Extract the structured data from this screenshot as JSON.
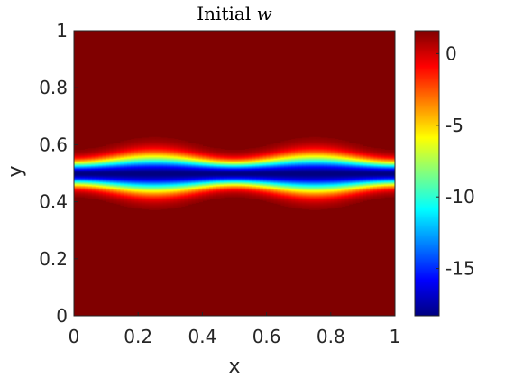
{
  "chart_data": {
    "type": "heatmap",
    "title": "Initial",
    "title_variable": "w",
    "xlabel": "x",
    "ylabel": "y",
    "xlim": [
      0,
      1
    ],
    "ylim": [
      0,
      1
    ],
    "xticks": [
      "0",
      "0.2",
      "0.4",
      "0.6",
      "0.8",
      "1"
    ],
    "yticks": [
      "0",
      "0.2",
      "0.4",
      "0.6",
      "0.8",
      "1"
    ],
    "colormap": "jet",
    "clim": [
      -18.3,
      1.6
    ],
    "colorbar_ticks": [
      {
        "value": 0,
        "label": "0"
      },
      {
        "value": -5,
        "label": "-5"
      },
      {
        "value": -10,
        "label": "-10"
      },
      {
        "value": -15,
        "label": "-15"
      }
    ],
    "field": {
      "background_value": 1.6,
      "minimum_value": -18.3,
      "band_center_y": 0.5,
      "band_half_width_y": 0.04,
      "band_perturbation": "width varies sinusoidally in x, widest near x = 0.25 and x = 0.75, narrowest near x = 0, 0.5, 1"
    }
  }
}
